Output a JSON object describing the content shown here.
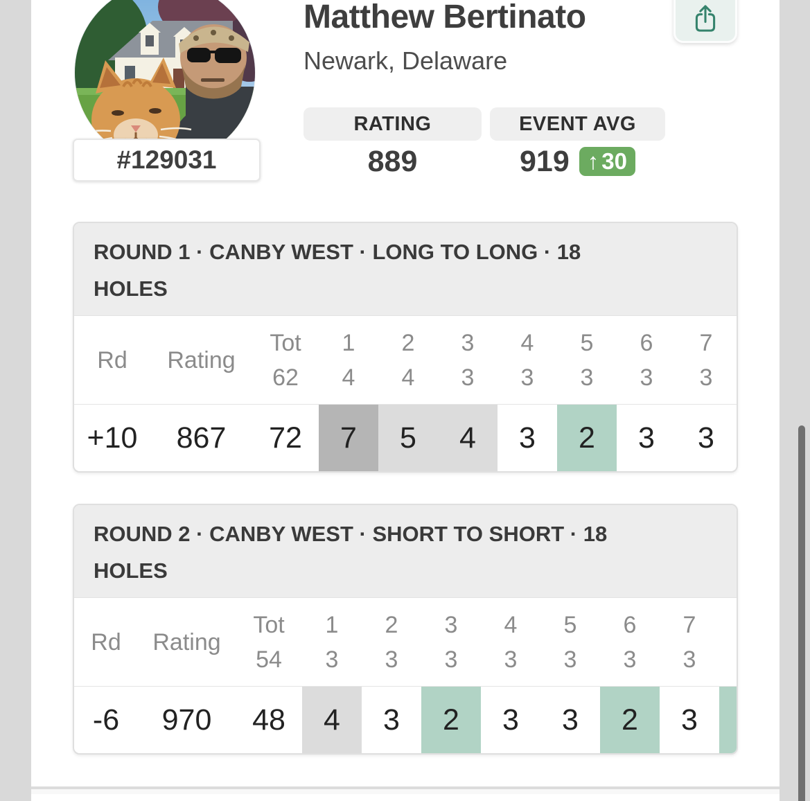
{
  "profile": {
    "name": "Matthew Bertinato",
    "location": "Newark, Delaware",
    "player_number": "#129031",
    "rating_label": "RATING",
    "rating_value": "889",
    "event_avg_label": "EVENT AVG",
    "event_avg_value": "919",
    "event_avg_delta_arrow": "↑",
    "event_avg_delta": "30"
  },
  "icons": {
    "share": "share-icon",
    "profile_photo": "man-with-cat-in-front-of-house"
  },
  "colors": {
    "page_background": "#d9d9d9",
    "accent_green_badge": "#6cab60",
    "score_under_par": "#b1d3c5",
    "score_one_over": "#dcdcdc",
    "score_multi_over": "#b5b5b5",
    "share_icon": "#35836c",
    "share_button_bg": "#e9f1ee",
    "header_text": "#8b8b8b"
  },
  "rounds": [
    {
      "title_lines": [
        "ROUND 1 · CANBY WEST · LONG TO LONG · 18",
        "HOLES"
      ],
      "columns": {
        "rd": "Rd",
        "rating": "Rating",
        "tot_label": "Tot",
        "tot_par": "62"
      },
      "holes": [
        {
          "num": "1",
          "par": "4"
        },
        {
          "num": "2",
          "par": "4"
        },
        {
          "num": "3",
          "par": "3"
        },
        {
          "num": "4",
          "par": "3"
        },
        {
          "num": "5",
          "par": "3"
        },
        {
          "num": "6",
          "par": "3"
        },
        {
          "num": "7",
          "par": "3"
        }
      ],
      "row": {
        "rd": "+10",
        "rating": "867",
        "total": "72",
        "scores": [
          {
            "value": "7",
            "style": "over2"
          },
          {
            "value": "5",
            "style": "over1"
          },
          {
            "value": "4",
            "style": "over1"
          },
          {
            "value": "3",
            "style": "par"
          },
          {
            "value": "2",
            "style": "under"
          },
          {
            "value": "3",
            "style": "par"
          },
          {
            "value": "3",
            "style": "par"
          }
        ],
        "next_hole_partial_style": null
      }
    },
    {
      "title_lines": [
        "ROUND 2 · CANBY WEST · SHORT TO SHORT · 18",
        "HOLES"
      ],
      "columns": {
        "rd": "Rd",
        "rating": "Rating",
        "tot_label": "Tot",
        "tot_par": "54"
      },
      "holes": [
        {
          "num": "1",
          "par": "3"
        },
        {
          "num": "2",
          "par": "3"
        },
        {
          "num": "3",
          "par": "3"
        },
        {
          "num": "4",
          "par": "3"
        },
        {
          "num": "5",
          "par": "3"
        },
        {
          "num": "6",
          "par": "3"
        },
        {
          "num": "7",
          "par": "3"
        }
      ],
      "row": {
        "rd": "-6",
        "rating": "970",
        "total": "48",
        "scores": [
          {
            "value": "4",
            "style": "over1"
          },
          {
            "value": "3",
            "style": "par"
          },
          {
            "value": "2",
            "style": "under"
          },
          {
            "value": "3",
            "style": "par"
          },
          {
            "value": "3",
            "style": "par"
          },
          {
            "value": "2",
            "style": "under"
          },
          {
            "value": "3",
            "style": "par"
          }
        ],
        "next_hole_partial_style": "under"
      }
    }
  ]
}
